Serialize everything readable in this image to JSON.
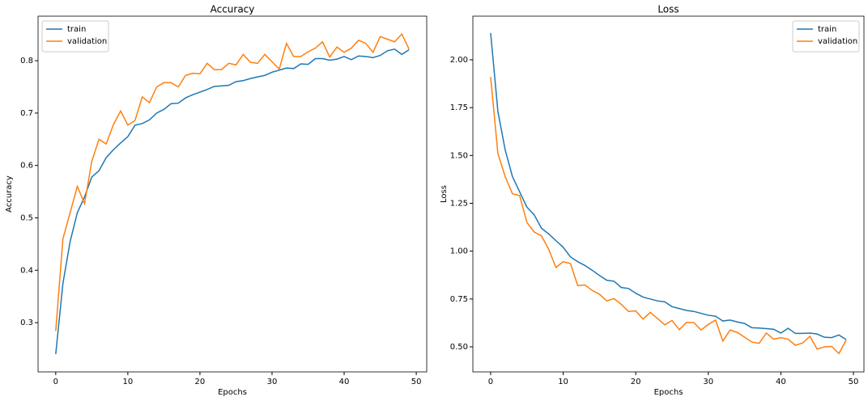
{
  "chart_data": [
    {
      "type": "line",
      "title": "Accuracy",
      "xlabel": "Epochs",
      "ylabel": "Accuracy",
      "x": [
        0,
        1,
        2,
        3,
        4,
        5,
        6,
        7,
        8,
        9,
        10,
        11,
        12,
        13,
        14,
        15,
        16,
        17,
        18,
        19,
        20,
        21,
        22,
        23,
        24,
        25,
        26,
        27,
        28,
        29,
        30,
        31,
        32,
        33,
        34,
        35,
        36,
        37,
        38,
        39,
        40,
        41,
        42,
        43,
        44,
        45,
        46,
        47,
        48,
        49
      ],
      "series": [
        {
          "name": "train",
          "color": "#1f77b4",
          "values": [
            0.24,
            0.375,
            0.455,
            0.51,
            0.54,
            0.578,
            0.59,
            0.615,
            0.63,
            0.643,
            0.655,
            0.677,
            0.68,
            0.687,
            0.7,
            0.707,
            0.718,
            0.719,
            0.729,
            0.735,
            0.74,
            0.745,
            0.751,
            0.752,
            0.753,
            0.76,
            0.762,
            0.766,
            0.769,
            0.772,
            0.778,
            0.782,
            0.786,
            0.785,
            0.794,
            0.793,
            0.804,
            0.804,
            0.801,
            0.803,
            0.808,
            0.802,
            0.809,
            0.808,
            0.806,
            0.81,
            0.819,
            0.822,
            0.812,
            0.821
          ]
        },
        {
          "name": "validation",
          "color": "#ff7f0e",
          "values": [
            0.284,
            0.46,
            0.51,
            0.56,
            0.527,
            0.608,
            0.65,
            0.641,
            0.678,
            0.704,
            0.677,
            0.686,
            0.731,
            0.72,
            0.75,
            0.758,
            0.758,
            0.75,
            0.772,
            0.776,
            0.775,
            0.795,
            0.783,
            0.783,
            0.795,
            0.792,
            0.812,
            0.797,
            0.795,
            0.812,
            0.798,
            0.784,
            0.833,
            0.808,
            0.808,
            0.817,
            0.824,
            0.836,
            0.807,
            0.826,
            0.816,
            0.824,
            0.839,
            0.833,
            0.816,
            0.846,
            0.841,
            0.836,
            0.851,
            0.822
          ]
        }
      ],
      "xlim": [
        -2.45,
        51.45
      ],
      "xticks": [
        0,
        10,
        20,
        30,
        40,
        50
      ],
      "ylim": [
        0.206,
        0.885
      ],
      "yticks": [
        0.3,
        0.4,
        0.5,
        0.6,
        0.7,
        0.8
      ],
      "legend": "upper left"
    },
    {
      "type": "line",
      "title": "Loss",
      "xlabel": "Epochs",
      "ylabel": "Loss",
      "x": [
        0,
        1,
        2,
        3,
        4,
        5,
        6,
        7,
        8,
        9,
        10,
        11,
        12,
        13,
        14,
        15,
        16,
        17,
        18,
        19,
        20,
        21,
        22,
        23,
        24,
        25,
        26,
        27,
        28,
        29,
        30,
        31,
        32,
        33,
        34,
        35,
        36,
        37,
        38,
        39,
        40,
        41,
        42,
        43,
        44,
        45,
        46,
        47,
        48,
        49
      ],
      "series": [
        {
          "name": "train",
          "color": "#1f77b4",
          "values": [
            2.14,
            1.73,
            1.53,
            1.39,
            1.31,
            1.23,
            1.19,
            1.12,
            1.09,
            1.055,
            1.02,
            0.97,
            0.945,
            0.925,
            0.9,
            0.873,
            0.848,
            0.843,
            0.81,
            0.805,
            0.78,
            0.76,
            0.75,
            0.74,
            0.735,
            0.71,
            0.7,
            0.69,
            0.685,
            0.675,
            0.665,
            0.66,
            0.635,
            0.64,
            0.63,
            0.622,
            0.6,
            0.598,
            0.595,
            0.592,
            0.572,
            0.597,
            0.57,
            0.57,
            0.572,
            0.567,
            0.55,
            0.548,
            0.562,
            0.538
          ]
        },
        {
          "name": "validation",
          "color": "#ff7f0e",
          "values": [
            1.91,
            1.51,
            1.39,
            1.3,
            1.29,
            1.15,
            1.1,
            1.08,
            1.01,
            0.915,
            0.945,
            0.935,
            0.82,
            0.823,
            0.795,
            0.775,
            0.74,
            0.752,
            0.722,
            0.685,
            0.688,
            0.645,
            0.68,
            0.648,
            0.615,
            0.638,
            0.59,
            0.628,
            0.627,
            0.588,
            0.617,
            0.64,
            0.53,
            0.588,
            0.575,
            0.55,
            0.525,
            0.518,
            0.572,
            0.54,
            0.548,
            0.54,
            0.508,
            0.52,
            0.555,
            0.488,
            0.5,
            0.502,
            0.465,
            0.535
          ]
        }
      ],
      "xlim": [
        -2.45,
        51.45
      ],
      "xticks": [
        0,
        10,
        20,
        30,
        40,
        50
      ],
      "ylim": [
        0.369,
        2.228
      ],
      "yticks": [
        {
          "value": 0.5,
          "label": "0.50"
        },
        {
          "value": 0.75,
          "label": "0.75"
        },
        {
          "value": 1.0,
          "label": "1.00"
        },
        {
          "value": 1.25,
          "label": "1.25"
        },
        {
          "value": 1.5,
          "label": "1.50"
        },
        {
          "value": 1.75,
          "label": "1.75"
        },
        {
          "value": 2.0,
          "label": "2.00"
        }
      ],
      "legend": "upper right"
    }
  ]
}
